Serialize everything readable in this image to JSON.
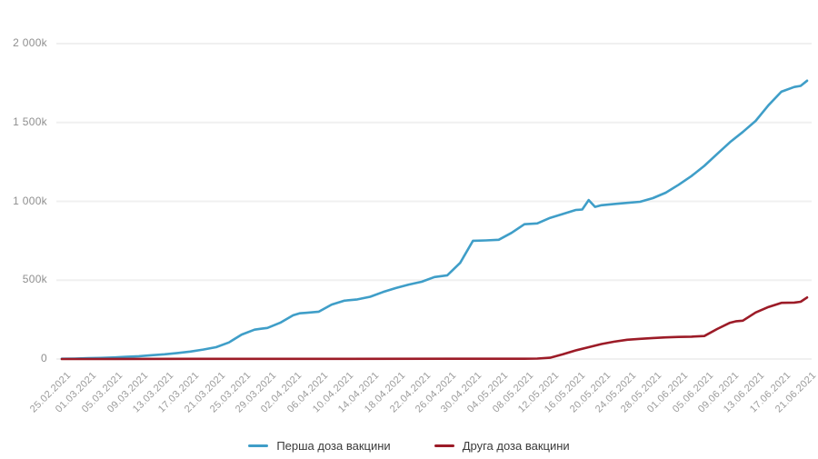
{
  "chart_data": {
    "type": "line",
    "title": "",
    "grid": "horizontal-only",
    "legend_position": "bottom-center",
    "x_domain_days": [
      0,
      116
    ],
    "x_axis": {
      "tick_interval_days": 4,
      "tick_labels": [
        "25.02.2021",
        "01.03.2021",
        "05.03.2021",
        "09.03.2021",
        "13.03.2021",
        "17.03.2021",
        "21.03.2021",
        "25.03.2021",
        "29.03.2021",
        "02.04.2021",
        "06.04.2021",
        "10.04.2021",
        "14.04.2021",
        "18.04.2021",
        "22.04.2021",
        "26.04.2021",
        "30.04.2021",
        "04.05.2021",
        "08.05.2021",
        "12.05.2021",
        "16.05.2021",
        "20.05.2021",
        "24.05.2021",
        "28.05.2021",
        "01.06.2021",
        "05.06.2021",
        "09.06.2021",
        "13.06.2021",
        "17.06.2021",
        "21.06.2021"
      ]
    },
    "y_axis": {
      "unit": "thousands",
      "ylim": [
        0,
        2000
      ],
      "tick_values": [
        2000,
        1500,
        1000,
        500,
        0
      ],
      "tick_labels": [
        "2 000k",
        "1 500k",
        "1 000k",
        "500k",
        "0"
      ]
    },
    "series": [
      {
        "name": "Перша доза вакцини",
        "color": "#3f9ec8",
        "points": [
          [
            0,
            2
          ],
          [
            2,
            3
          ],
          [
            4,
            5
          ],
          [
            6,
            7
          ],
          [
            8,
            10
          ],
          [
            10,
            14
          ],
          [
            12,
            18
          ],
          [
            14,
            24
          ],
          [
            16,
            30
          ],
          [
            18,
            38
          ],
          [
            20,
            47
          ],
          [
            22,
            60
          ],
          [
            24,
            75
          ],
          [
            26,
            105
          ],
          [
            28,
            155
          ],
          [
            30,
            186
          ],
          [
            31,
            192
          ],
          [
            32,
            197
          ],
          [
            34,
            230
          ],
          [
            36,
            277
          ],
          [
            37,
            290
          ],
          [
            38,
            293
          ],
          [
            40,
            300
          ],
          [
            42,
            345
          ],
          [
            44,
            370
          ],
          [
            46,
            378
          ],
          [
            48,
            395
          ],
          [
            50,
            425
          ],
          [
            52,
            450
          ],
          [
            54,
            472
          ],
          [
            56,
            490
          ],
          [
            58,
            520
          ],
          [
            60,
            531
          ],
          [
            62,
            610
          ],
          [
            64,
            750
          ],
          [
            66,
            752
          ],
          [
            68,
            756
          ],
          [
            70,
            800
          ],
          [
            72,
            855
          ],
          [
            74,
            860
          ],
          [
            76,
            895
          ],
          [
            78,
            920
          ],
          [
            80,
            945
          ],
          [
            81,
            948
          ],
          [
            82,
            1008
          ],
          [
            83,
            965
          ],
          [
            84,
            975
          ],
          [
            86,
            983
          ],
          [
            88,
            990
          ],
          [
            90,
            997
          ],
          [
            92,
            1020
          ],
          [
            94,
            1055
          ],
          [
            96,
            1105
          ],
          [
            98,
            1160
          ],
          [
            100,
            1225
          ],
          [
            102,
            1300
          ],
          [
            104,
            1375
          ],
          [
            106,
            1440
          ],
          [
            108,
            1510
          ],
          [
            110,
            1610
          ],
          [
            112,
            1695
          ],
          [
            114,
            1725
          ],
          [
            115,
            1732
          ],
          [
            116,
            1765
          ]
        ]
      },
      {
        "name": "Друга доза вакцини",
        "color": "#9c1b27",
        "points": [
          [
            0,
            0
          ],
          [
            20,
            1
          ],
          [
            40,
            1
          ],
          [
            60,
            2
          ],
          [
            72,
            2
          ],
          [
            74,
            3
          ],
          [
            76,
            8
          ],
          [
            78,
            30
          ],
          [
            80,
            55
          ],
          [
            82,
            75
          ],
          [
            84,
            95
          ],
          [
            86,
            110
          ],
          [
            88,
            122
          ],
          [
            90,
            128
          ],
          [
            92,
            133
          ],
          [
            94,
            137
          ],
          [
            96,
            140
          ],
          [
            98,
            142
          ],
          [
            100,
            146
          ],
          [
            102,
            190
          ],
          [
            104,
            230
          ],
          [
            105,
            240
          ],
          [
            106,
            243
          ],
          [
            108,
            295
          ],
          [
            110,
            330
          ],
          [
            112,
            356
          ],
          [
            114,
            358
          ],
          [
            115,
            363
          ],
          [
            116,
            390
          ]
        ]
      }
    ]
  },
  "colors": {
    "background": "#ffffff",
    "gridline": "#f0f0f0",
    "axis_text": "#9b9b9b",
    "legend_text": "#3a3a3a"
  }
}
